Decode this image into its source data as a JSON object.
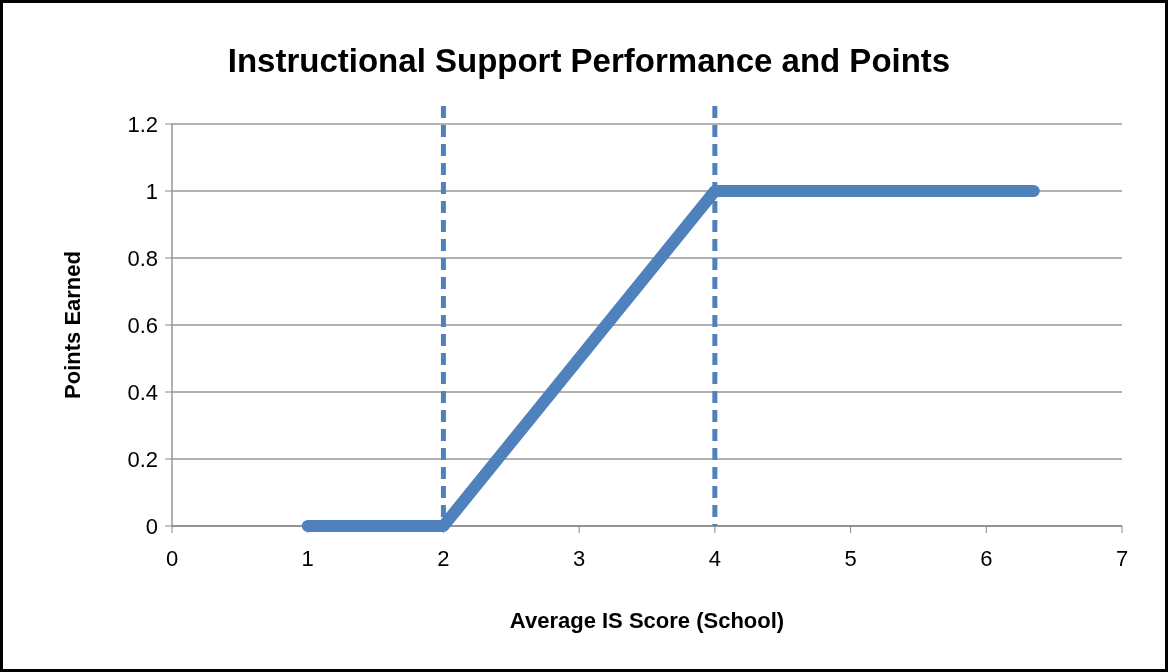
{
  "chart_data": {
    "type": "line",
    "title": "Instructional Support Performance and Points",
    "xlabel": "Average IS Score (School)",
    "ylabel": "Points Earned",
    "x": [
      1,
      2,
      4,
      6.35
    ],
    "series": [
      {
        "color": "#4f81bd",
        "values": [
          0,
          0,
          1,
          1
        ]
      }
    ],
    "xlim": [
      0,
      7
    ],
    "xticks": [
      0,
      1,
      2,
      3,
      4,
      5,
      6,
      7
    ],
    "ylim": [
      0,
      1.2
    ],
    "yticks": [
      0,
      0.2,
      0.4,
      0.6,
      0.8,
      1,
      1.2
    ],
    "grid": "y",
    "marker": "none",
    "line_style": "solid",
    "ref_lines": [
      {
        "axis": "x",
        "value": 2,
        "color": "#4f81bd",
        "line_style": "dashed"
      },
      {
        "axis": "x",
        "value": 4,
        "color": "#4f81bd",
        "line_style": "dashed"
      }
    ]
  }
}
